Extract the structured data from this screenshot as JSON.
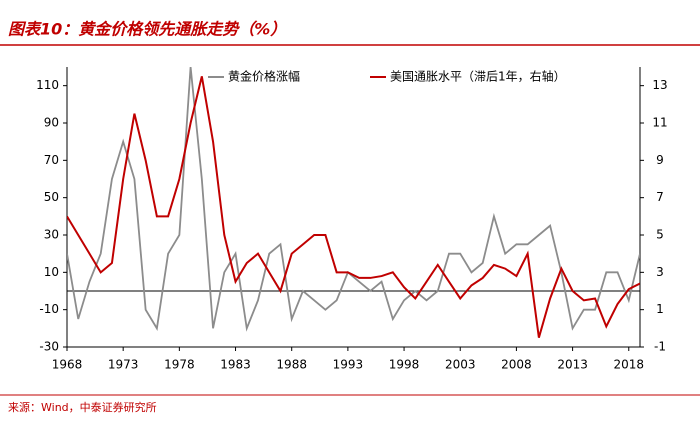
{
  "chart_data": {
    "type": "line",
    "title": "图表10：黄金价格领先通胀走势（%）",
    "source": "来源：Wind，中泰证券研究所",
    "x": [
      1968,
      1969,
      1970,
      1971,
      1972,
      1973,
      1974,
      1975,
      1976,
      1977,
      1978,
      1979,
      1980,
      1981,
      1982,
      1983,
      1984,
      1985,
      1986,
      1987,
      1988,
      1989,
      1990,
      1991,
      1992,
      1993,
      1994,
      1995,
      1996,
      1997,
      1998,
      1999,
      2000,
      2001,
      2002,
      2003,
      2004,
      2005,
      2006,
      2007,
      2008,
      2009,
      2010,
      2011,
      2012,
      2013,
      2014,
      2015,
      2016,
      2017,
      2018,
      2019
    ],
    "series": [
      {
        "name": "黄金价格涨幅",
        "color": "#8c8c8c",
        "axis": "y",
        "values": [
          20,
          -15,
          5,
          20,
          60,
          80,
          60,
          -10,
          -20,
          20,
          30,
          120,
          60,
          -20,
          10,
          20,
          -20,
          -5,
          20,
          25,
          -15,
          0,
          -5,
          -10,
          -5,
          10,
          5,
          0,
          5,
          -15,
          -5,
          0,
          -5,
          0,
          20,
          20,
          10,
          15,
          40,
          20,
          25,
          25,
          30,
          35,
          10,
          -20,
          -10,
          -10,
          10,
          10,
          -5,
          20
        ]
      },
      {
        "name": "美国通胀水平（滞后1年，右轴）",
        "color": "#c00000",
        "axis": "y2",
        "values": [
          6,
          5,
          4,
          3,
          3.5,
          8,
          11.5,
          9,
          6,
          6,
          8,
          11,
          13.5,
          10,
          5,
          2.5,
          3.5,
          4,
          3,
          2,
          4,
          4.5,
          5,
          5,
          3,
          3,
          2.7,
          2.7,
          2.8,
          3,
          2.2,
          1.6,
          2.5,
          3.4,
          2.5,
          1.6,
          2.3,
          2.7,
          3.4,
          3.2,
          2.8,
          4,
          -0.5,
          1.6,
          3.2,
          2,
          1.5,
          1.6,
          0.1,
          1.3,
          2.1,
          2.4
        ]
      }
    ],
    "xlim": [
      1968,
      2019
    ],
    "xticks": [
      1968,
      1973,
      1978,
      1983,
      1988,
      1993,
      1998,
      2003,
      2008,
      2013,
      2018
    ],
    "ylim": [
      -30,
      120
    ],
    "yticks": [
      -30,
      -10,
      10,
      30,
      50,
      70,
      90,
      110
    ],
    "y2lim": [
      -1,
      14
    ],
    "y2ticks": [
      -1,
      1,
      3,
      5,
      7,
      9,
      11,
      13
    ]
  }
}
